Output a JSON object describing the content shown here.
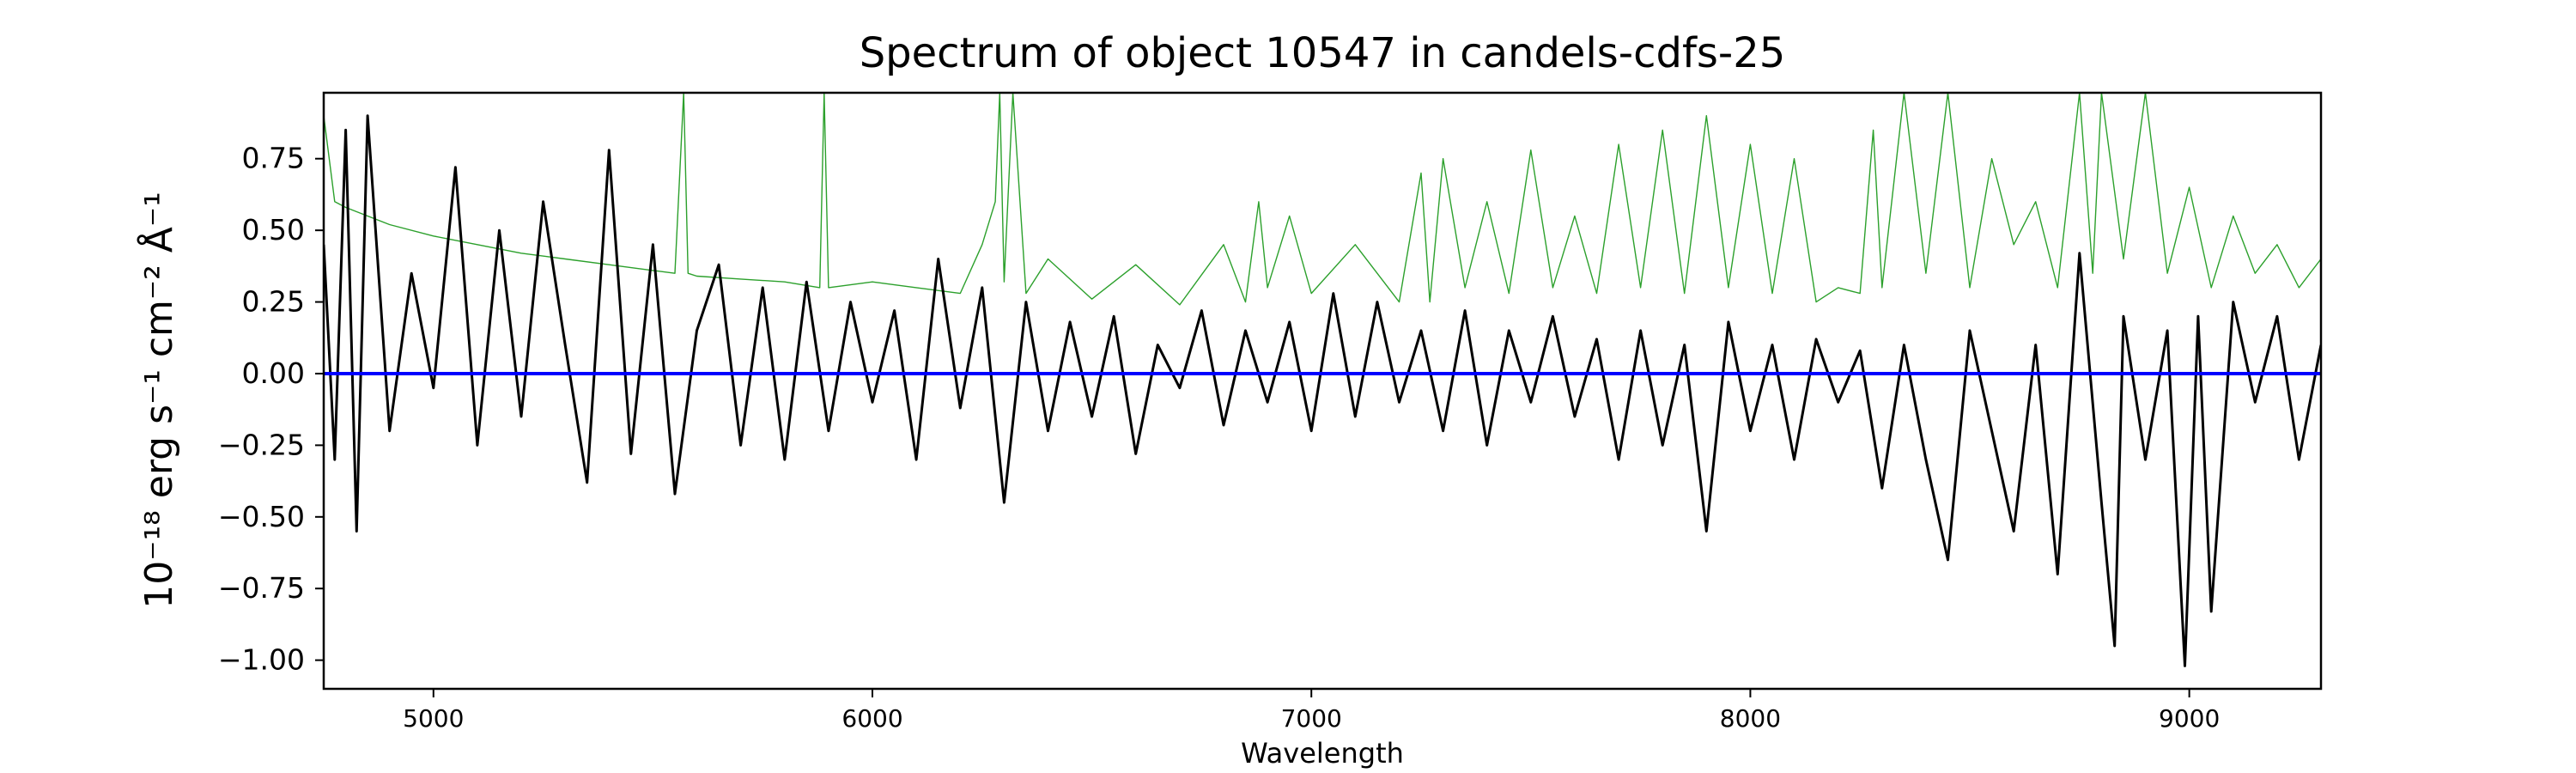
{
  "chart_data": {
    "type": "line",
    "title": "Spectrum of object 10547 in candels-cdfs-25",
    "xlabel": "Wavelength",
    "ylabel": "10⁻¹⁸ erg s⁻¹ cm⁻² Å⁻¹",
    "xlim": [
      4750,
      9300
    ],
    "ylim": [
      -1.1,
      0.98
    ],
    "xticks": [
      5000,
      6000,
      7000,
      8000,
      9000
    ],
    "xtick_labels": [
      "5000",
      "6000",
      "7000",
      "8000",
      "9000"
    ],
    "yticks": [
      0.75,
      0.5,
      0.25,
      0.0,
      -0.25,
      -0.5,
      -0.75,
      -1.0
    ],
    "ytick_labels": [
      "0.75",
      "0.50",
      "0.25",
      "0.00",
      "−0.25",
      "−0.50",
      "−0.75",
      "−1.00"
    ],
    "grid": false,
    "series": [
      {
        "role": "flux",
        "color": "#000000",
        "x": [
          4750,
          4775,
          4800,
          4825,
          4850,
          4900,
          4950,
          5000,
          5050,
          5100,
          5150,
          5200,
          5250,
          5300,
          5350,
          5400,
          5450,
          5500,
          5550,
          5600,
          5650,
          5700,
          5750,
          5800,
          5850,
          5900,
          5950,
          6000,
          6050,
          6100,
          6150,
          6200,
          6250,
          6300,
          6350,
          6400,
          6450,
          6500,
          6550,
          6600,
          6650,
          6700,
          6750,
          6800,
          6850,
          6900,
          6950,
          7000,
          7050,
          7100,
          7150,
          7200,
          7250,
          7300,
          7350,
          7400,
          7450,
          7500,
          7550,
          7600,
          7650,
          7700,
          7750,
          7800,
          7850,
          7900,
          7950,
          8000,
          8050,
          8100,
          8150,
          8200,
          8250,
          8300,
          8350,
          8400,
          8450,
          8500,
          8550,
          8600,
          8650,
          8700,
          8750,
          8800,
          8830,
          8850,
          8900,
          8950,
          8990,
          9020,
          9050,
          9100,
          9150,
          9200,
          9250,
          9300
        ],
        "y": [
          0.45,
          -0.3,
          0.85,
          -0.55,
          0.9,
          -0.2,
          0.35,
          -0.05,
          0.72,
          -0.25,
          0.5,
          -0.15,
          0.6,
          0.1,
          -0.38,
          0.78,
          -0.28,
          0.45,
          -0.42,
          0.15,
          0.38,
          -0.25,
          0.3,
          -0.3,
          0.32,
          -0.2,
          0.25,
          -0.1,
          0.22,
          -0.3,
          0.4,
          -0.12,
          0.3,
          -0.45,
          0.25,
          -0.2,
          0.18,
          -0.15,
          0.2,
          -0.28,
          0.1,
          -0.05,
          0.22,
          -0.18,
          0.15,
          -0.1,
          0.18,
          -0.2,
          0.28,
          -0.15,
          0.25,
          -0.1,
          0.15,
          -0.2,
          0.22,
          -0.25,
          0.15,
          -0.1,
          0.2,
          -0.15,
          0.12,
          -0.3,
          0.15,
          -0.25,
          0.1,
          -0.55,
          0.18,
          -0.2,
          0.1,
          -0.3,
          0.12,
          -0.1,
          0.08,
          -0.4,
          0.1,
          -0.3,
          -0.65,
          0.15,
          -0.2,
          -0.55,
          0.1,
          -0.7,
          0.42,
          -0.45,
          -0.95,
          0.2,
          -0.3,
          0.15,
          -1.02,
          0.2,
          -0.83,
          0.25,
          -0.1,
          0.2,
          -0.3,
          0.1
        ]
      },
      {
        "role": "error",
        "color": "#2ca02c",
        "x": [
          4750,
          4775,
          4800,
          4850,
          4900,
          5000,
          5100,
          5200,
          5300,
          5400,
          5500,
          5550,
          5570,
          5580,
          5600,
          5700,
          5800,
          5880,
          5890,
          5900,
          6000,
          6100,
          6200,
          6250,
          6280,
          6290,
          6300,
          6320,
          6350,
          6400,
          6500,
          6600,
          6700,
          6800,
          6850,
          6880,
          6900,
          6950,
          7000,
          7100,
          7200,
          7250,
          7270,
          7300,
          7350,
          7400,
          7450,
          7500,
          7550,
          7600,
          7650,
          7700,
          7750,
          7800,
          7850,
          7900,
          7950,
          8000,
          8050,
          8100,
          8150,
          8200,
          8250,
          8280,
          8300,
          8350,
          8400,
          8450,
          8500,
          8550,
          8600,
          8650,
          8700,
          8750,
          8780,
          8800,
          8850,
          8900,
          8950,
          9000,
          9050,
          9100,
          9150,
          9200,
          9250,
          9300
        ],
        "y": [
          0.9,
          0.6,
          0.58,
          0.55,
          0.52,
          0.48,
          0.45,
          0.42,
          0.4,
          0.38,
          0.36,
          0.35,
          0.98,
          0.35,
          0.34,
          0.33,
          0.32,
          0.3,
          0.98,
          0.3,
          0.32,
          0.3,
          0.28,
          0.45,
          0.6,
          0.98,
          0.32,
          0.98,
          0.28,
          0.4,
          0.26,
          0.38,
          0.24,
          0.45,
          0.25,
          0.6,
          0.3,
          0.55,
          0.28,
          0.45,
          0.25,
          0.7,
          0.25,
          0.75,
          0.3,
          0.6,
          0.28,
          0.78,
          0.3,
          0.55,
          0.28,
          0.8,
          0.3,
          0.85,
          0.28,
          0.9,
          0.3,
          0.8,
          0.28,
          0.75,
          0.25,
          0.3,
          0.28,
          0.85,
          0.3,
          0.98,
          0.35,
          0.98,
          0.3,
          0.75,
          0.45,
          0.6,
          0.3,
          0.98,
          0.35,
          0.98,
          0.4,
          0.98,
          0.35,
          0.65,
          0.3,
          0.55,
          0.35,
          0.45,
          0.3,
          0.4
        ]
      },
      {
        "role": "zero",
        "color": "#0000ff",
        "x": [
          4750,
          9300
        ],
        "y": [
          0.0,
          0.0
        ]
      }
    ]
  }
}
